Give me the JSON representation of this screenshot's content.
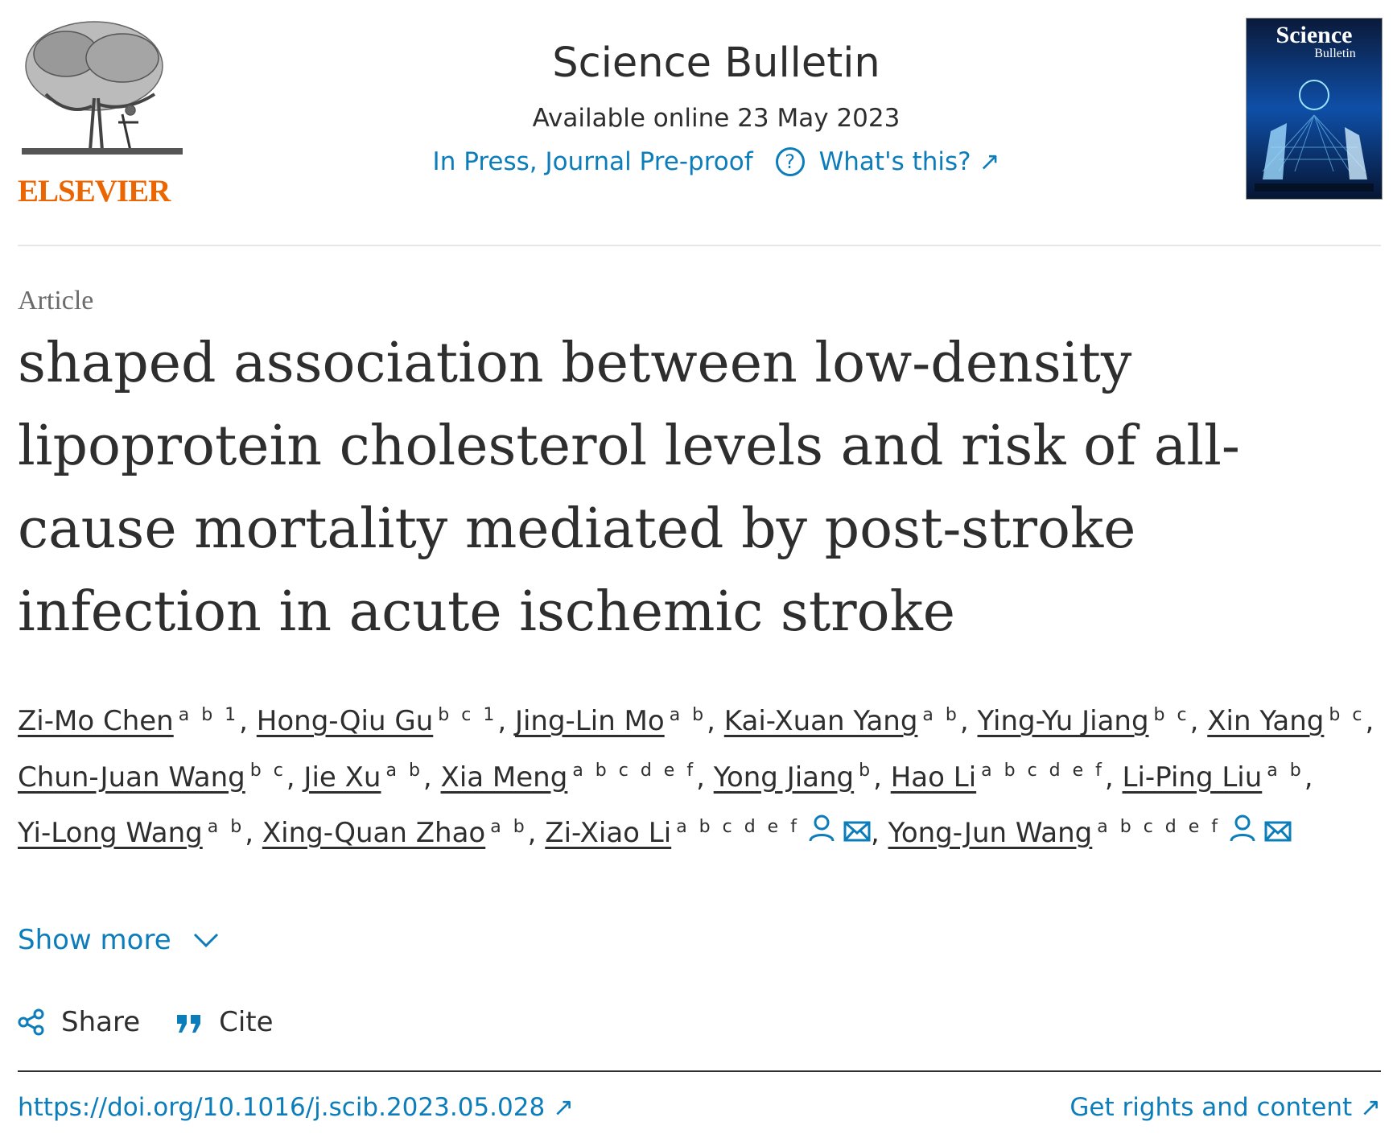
{
  "header": {
    "logo_text": "ELSEVIER",
    "journal_title": "Science Bulletin",
    "available_online": "Available online 23 May 2023",
    "in_press": "In Press, Journal Pre-proof",
    "whats_this": "What's this? ↗",
    "cover_title_line1": "Science",
    "cover_title_line2": "Bulletin"
  },
  "article": {
    "type": "Article",
    "title": "shaped association between low-density lipoprotein cholesterol levels and risk of all-cause mortality mediated by post-stroke infection in acute ischemic stroke"
  },
  "authors": [
    {
      "name": "Zi-Mo Chen",
      "sup": "a b 1",
      "sep": ","
    },
    {
      "name": "Hong-Qiu Gu",
      "sup": "b c 1",
      "sep": ","
    },
    {
      "name": "Jing-Lin Mo",
      "sup": "a b",
      "sep": ","
    },
    {
      "name": "Kai-Xuan Yang",
      "sup": "a b",
      "sep": ","
    },
    {
      "name": "Ying-Yu Jiang",
      "sup": "b c",
      "sep": ","
    },
    {
      "name": "Xin Yang",
      "sup": "b c",
      "sep": ","
    },
    {
      "name": "Chun-Juan Wang",
      "sup": "b c",
      "sep": ","
    },
    {
      "name": "Jie Xu",
      "sup": "a b",
      "sep": ","
    },
    {
      "name": "Xia Meng",
      "sup": "a b c d e f",
      "sep": ","
    },
    {
      "name": "Yong Jiang",
      "sup": "b",
      "sep": ","
    },
    {
      "name": "Hao Li",
      "sup": "a b c d e f",
      "sep": ","
    },
    {
      "name": "Li-Ping Liu",
      "sup": "a b",
      "sep": ","
    },
    {
      "name": "Yi-Long Wang",
      "sup": "a b",
      "sep": ","
    },
    {
      "name": "Xing-Quan Zhao",
      "sup": "a b",
      "sep": ","
    },
    {
      "name": "Zi-Xiao Li",
      "sup": "a b c d e f",
      "sep": ","
    },
    {
      "name": "Yong-Jun Wang",
      "sup": "a b c d e f",
      "sep": ""
    }
  ],
  "show_more": "Show more",
  "actions": {
    "share": "Share",
    "cite": "Cite"
  },
  "footer": {
    "doi": "https://doi.org/10.1016/j.scib.2023.05.028 ↗",
    "rights": "Get rights and content ↗"
  },
  "colors": {
    "link": "#0c7dbb",
    "brand": "#eb6500",
    "text": "#2e2e2e"
  }
}
